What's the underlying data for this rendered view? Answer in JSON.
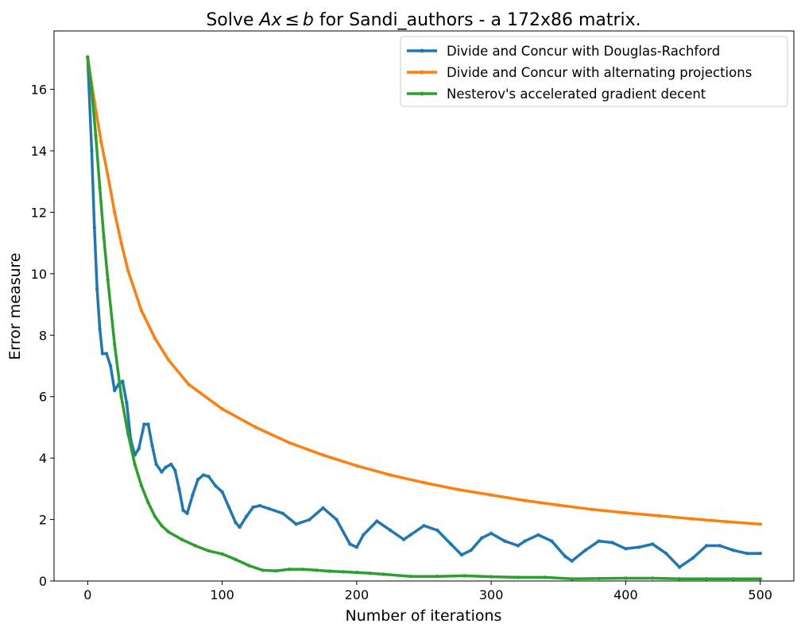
{
  "chart_data": {
    "type": "line",
    "title_prefix": "Solve ",
    "title_math": {
      "a": "Ax",
      "rel": "≤",
      "b": "b"
    },
    "title_suffix": " for Sandi_authors - a 172x86 matrix.",
    "xlabel": "Number of iterations",
    "ylabel": "Error measure",
    "xlim": [
      -25,
      525
    ],
    "ylim": [
      0,
      17.9
    ],
    "xticks": [
      0,
      100,
      200,
      300,
      400,
      500
    ],
    "yticks": [
      0,
      2,
      4,
      6,
      8,
      10,
      12,
      14,
      16
    ],
    "grid": false,
    "legend_position": "upper right",
    "series": [
      {
        "name": "Divide and Concur with Douglas-Rachford",
        "color": "#1f77b4",
        "x": [
          0,
          3,
          5,
          7,
          9,
          11,
          14,
          17,
          20,
          23,
          26,
          29,
          32,
          35,
          38,
          42,
          45,
          48,
          51,
          55,
          58,
          62,
          65,
          68,
          71,
          74,
          78,
          82,
          86,
          90,
          95,
          100,
          105,
          110,
          113,
          118,
          123,
          128,
          135,
          145,
          155,
          165,
          175,
          185,
          195,
          200,
          205,
          215,
          225,
          235,
          240,
          250,
          260,
          270,
          278,
          285,
          293,
          300,
          310,
          320,
          325,
          335,
          345,
          355,
          360,
          370,
          380,
          390,
          400,
          410,
          420,
          430,
          440,
          450,
          460,
          470,
          480,
          490,
          500
        ],
        "y": [
          17.05,
          14.0,
          11.5,
          9.5,
          8.2,
          7.4,
          7.4,
          7.0,
          6.2,
          6.4,
          6.5,
          5.8,
          4.6,
          4.1,
          4.3,
          5.1,
          5.1,
          4.4,
          3.8,
          3.55,
          3.7,
          3.8,
          3.6,
          3.0,
          2.3,
          2.2,
          2.8,
          3.3,
          3.45,
          3.4,
          3.1,
          2.9,
          2.4,
          1.9,
          1.75,
          2.1,
          2.4,
          2.45,
          2.35,
          2.2,
          1.85,
          2.0,
          2.38,
          2.0,
          1.2,
          1.1,
          1.5,
          1.95,
          1.65,
          1.35,
          1.5,
          1.8,
          1.65,
          1.2,
          0.85,
          1.0,
          1.4,
          1.55,
          1.3,
          1.15,
          1.3,
          1.5,
          1.3,
          0.8,
          0.65,
          1.0,
          1.3,
          1.25,
          1.05,
          1.1,
          1.2,
          0.9,
          0.45,
          0.75,
          1.15,
          1.15,
          1.0,
          0.9,
          0.9
        ]
      },
      {
        "name": "Divide and Concur with alternating projections",
        "color": "#ff7f0e",
        "x": [
          0,
          5,
          10,
          15,
          20,
          25,
          30,
          40,
          50,
          60,
          75,
          100,
          125,
          150,
          175,
          200,
          225,
          250,
          275,
          300,
          325,
          350,
          375,
          400,
          425,
          450,
          475,
          500
        ],
        "y": [
          17.05,
          15.6,
          14.3,
          13.2,
          12.0,
          11.0,
          10.1,
          8.8,
          7.9,
          7.2,
          6.4,
          5.6,
          5.0,
          4.5,
          4.1,
          3.75,
          3.45,
          3.2,
          2.98,
          2.8,
          2.62,
          2.47,
          2.33,
          2.22,
          2.12,
          2.02,
          1.93,
          1.85
        ]
      },
      {
        "name": "Nesterov's accelerated gradient decent",
        "color": "#2ca02c",
        "x": [
          0,
          3,
          6,
          9,
          12,
          15,
          20,
          25,
          30,
          35,
          40,
          45,
          50,
          55,
          60,
          70,
          80,
          90,
          100,
          110,
          120,
          130,
          140,
          150,
          160,
          170,
          180,
          190,
          200,
          210,
          220,
          240,
          260,
          280,
          300,
          320,
          340,
          360,
          380,
          400,
          420,
          440,
          460,
          480,
          500
        ],
        "y": [
          17.05,
          16.0,
          14.5,
          12.8,
          11.2,
          9.8,
          7.7,
          6.0,
          4.8,
          3.8,
          3.1,
          2.55,
          2.1,
          1.8,
          1.6,
          1.35,
          1.15,
          0.98,
          0.88,
          0.7,
          0.5,
          0.35,
          0.33,
          0.38,
          0.38,
          0.35,
          0.32,
          0.3,
          0.28,
          0.25,
          0.22,
          0.15,
          0.15,
          0.17,
          0.14,
          0.12,
          0.12,
          0.07,
          0.08,
          0.09,
          0.09,
          0.07,
          0.07,
          0.07,
          0.07
        ]
      }
    ]
  }
}
